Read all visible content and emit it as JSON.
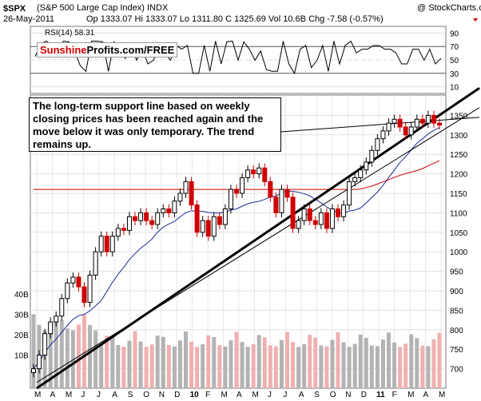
{
  "header": {
    "symbol": "$SPX",
    "name": "(S&P 500 Large Cap Index) INDX",
    "date": "26-May-2011",
    "quote": "Op 1333.07 Hi 1333.07 Lo 1311.80 C 1325.69 Vol 10.6B Chg -7.58 (-0.57%)",
    "watermark": "@ StockCharts.com"
  },
  "rsi": {
    "label": "RSI(14) 58.31",
    "ticks": [
      "90",
      "70",
      "50",
      "30",
      "10"
    ]
  },
  "badge": {
    "part1": "Sunshine",
    "part2": "Profits.com/FREE"
  },
  "annotation": "The long-term support line based on weekly closing prices has been reached again and the move below it was only temporary. The trend remains up.",
  "price_ticks": [
    "1350",
    "1300",
    "1250",
    "1200",
    "1150",
    "1100",
    "1050",
    "1000",
    "950",
    "900",
    "850",
    "800",
    "750",
    "700"
  ],
  "volume_ticks": [
    "40B",
    "30B",
    "20B",
    "10B"
  ],
  "x_ticks": [
    "M",
    "A",
    "M",
    "J",
    "J",
    "A",
    "S",
    "O",
    "N",
    "D",
    "10",
    "F",
    "M",
    "A",
    "M",
    "J",
    "J",
    "A",
    "S",
    "O",
    "N",
    "D",
    "11",
    "F",
    "M",
    "A",
    "M"
  ],
  "colors": {
    "up": "#000000",
    "down": "#d00000",
    "ma_long": "#cc0000",
    "ma_short": "#1a2a9a",
    "vol_up": "#b3b3b3",
    "vol_down": "#f0b0b0"
  },
  "chart_data": {
    "type": "candlestick",
    "title": "$SPX (S&P 500 Large Cap Index) INDX",
    "ylim": [
      650,
      1400
    ],
    "grid": true,
    "series": [
      {
        "name": "close",
        "values": [
          700,
          735,
          790,
          820,
          835,
          880,
          920,
          935,
          910,
          870,
          940,
          1000,
          1040,
          1000,
          1040,
          1060,
          1055,
          1090,
          1080,
          1100,
          1080,
          1070,
          1100,
          1110,
          1100,
          1130,
          1150,
          1180,
          1120,
          1050,
          1080,
          1040,
          1090,
          1070,
          1110,
          1160,
          1150,
          1190,
          1210,
          1200,
          1215,
          1180,
          1140,
          1100,
          1160,
          1140,
          1060,
          1080,
          1110,
          1080,
          1070,
          1100,
          1060,
          1110,
          1090,
          1120,
          1180,
          1190,
          1210,
          1230,
          1260,
          1290,
          1310,
          1330,
          1340,
          1320,
          1300,
          1320,
          1340,
          1330,
          1350,
          1330,
          1325
        ]
      }
    ]
  }
}
